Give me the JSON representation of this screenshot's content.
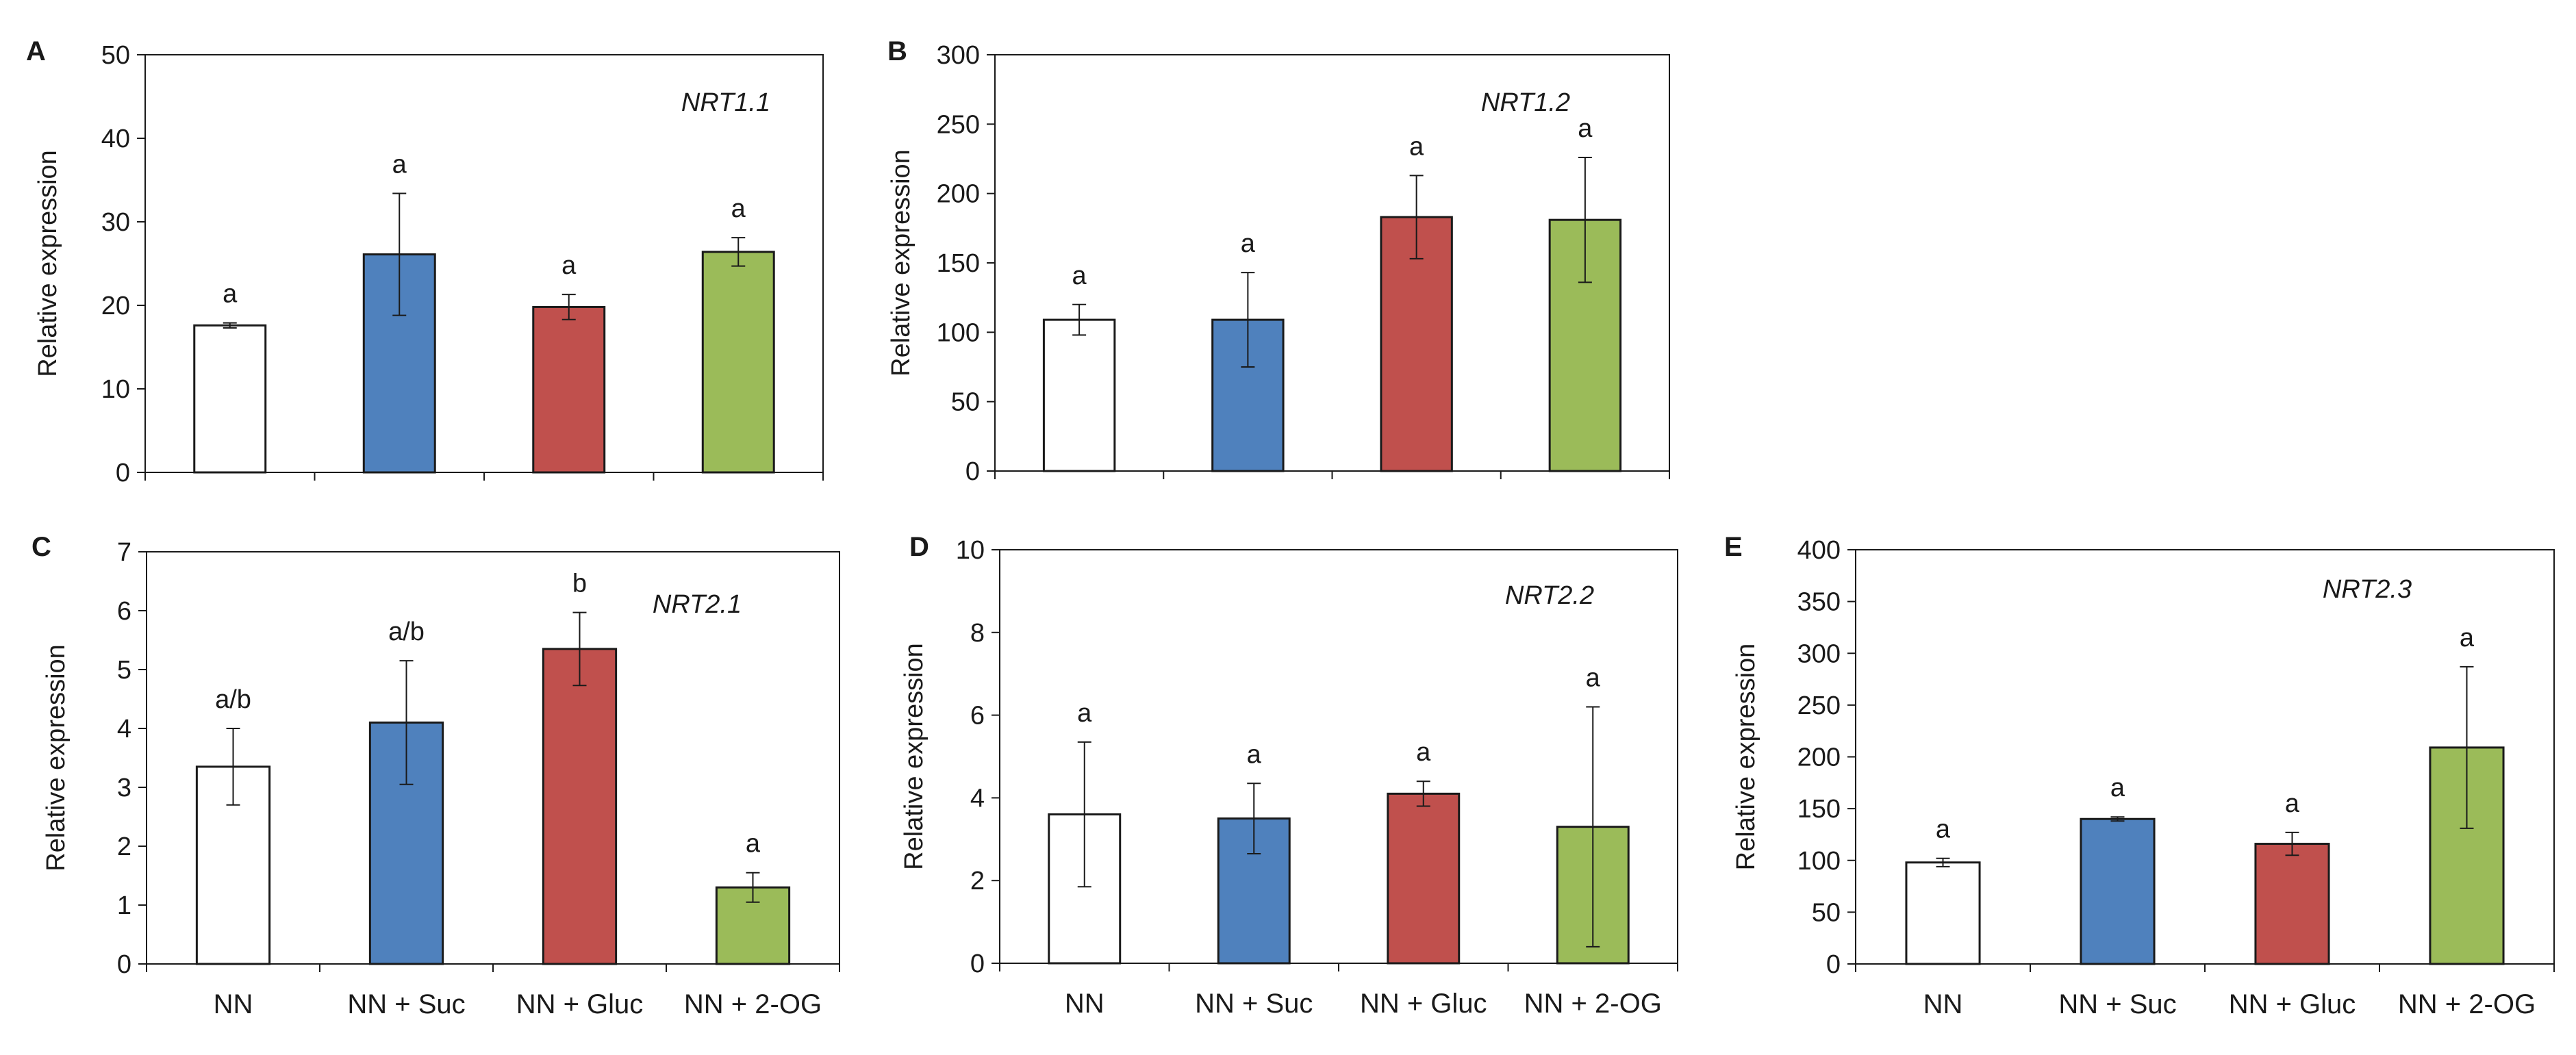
{
  "colors": {
    "NN": "#ffffff",
    "NN + Suc": "#4f81bd",
    "NN + Gluc": "#c0504d",
    "NN + 2-OG": "#9bbb59",
    "axis": "#1a1a1a"
  },
  "chart_data": [
    {
      "panel": "A",
      "type": "bar",
      "title": "NRT1.1",
      "xlabel": "",
      "ylabel": "Relative expression",
      "ylim": [
        0,
        50
      ],
      "yticks": [
        0,
        10,
        20,
        30,
        40,
        50
      ],
      "categories": [
        "NN",
        "NN + Suc",
        "NN + Gluc",
        "NN + 2-OG"
      ],
      "show_category_labels": false,
      "values": [
        17.6,
        26.1,
        19.8,
        26.4
      ],
      "errors": [
        0.3,
        7.3,
        1.5,
        1.7
      ],
      "significance": [
        "a",
        "a",
        "a",
        "a"
      ]
    },
    {
      "panel": "B",
      "type": "bar",
      "title": "NRT1.2",
      "xlabel": "",
      "ylabel": "Relative expression",
      "ylim": [
        0,
        300
      ],
      "yticks": [
        0,
        50,
        100,
        150,
        200,
        250,
        300
      ],
      "categories": [
        "NN",
        "NN + Suc",
        "NN + Gluc",
        "NN + 2-OG"
      ],
      "show_category_labels": false,
      "values": [
        109,
        109,
        183,
        181
      ],
      "errors": [
        11,
        34,
        30,
        45
      ],
      "significance": [
        "a",
        "a",
        "a",
        "a"
      ]
    },
    {
      "panel": "C",
      "type": "bar",
      "title": "NRT2.1",
      "xlabel": "",
      "ylabel": "Relative expression",
      "ylim": [
        0,
        7
      ],
      "yticks": [
        0,
        1,
        2,
        3,
        4,
        5,
        6,
        7
      ],
      "categories": [
        "NN",
        "NN + Suc",
        "NN + Gluc",
        "NN + 2-OG"
      ],
      "show_category_labels": true,
      "values": [
        3.35,
        4.1,
        5.35,
        1.3
      ],
      "errors": [
        0.65,
        1.05,
        0.62,
        0.25
      ],
      "significance": [
        "a/b",
        "a/b",
        "b",
        "a"
      ]
    },
    {
      "panel": "D",
      "type": "bar",
      "title": "NRT2.2",
      "xlabel": "",
      "ylabel": "Relative expression",
      "ylim": [
        0,
        10
      ],
      "yticks": [
        0,
        2,
        4,
        6,
        8,
        10
      ],
      "categories": [
        "NN",
        "NN + Suc",
        "NN + Gluc",
        "NN + 2-OG"
      ],
      "show_category_labels": true,
      "values": [
        3.6,
        3.5,
        4.1,
        3.3
      ],
      "errors": [
        1.75,
        0.85,
        0.3,
        2.9
      ],
      "significance": [
        "a",
        "a",
        "a",
        "a"
      ]
    },
    {
      "panel": "E",
      "type": "bar",
      "title": "NRT2.3",
      "xlabel": "",
      "ylabel": "Relative expression",
      "ylim": [
        0,
        400
      ],
      "yticks": [
        0,
        50,
        100,
        150,
        200,
        250,
        300,
        350,
        400
      ],
      "categories": [
        "NN",
        "NN + Suc",
        "NN + Gluc",
        "NN + 2-OG"
      ],
      "show_category_labels": true,
      "values": [
        98,
        140,
        116,
        209
      ],
      "errors": [
        4,
        2,
        11,
        78
      ],
      "significance": [
        "a",
        "a",
        "a",
        "a"
      ]
    }
  ]
}
